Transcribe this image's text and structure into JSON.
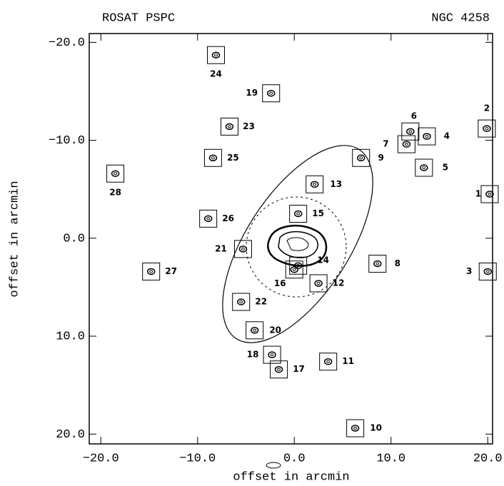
{
  "chart_data": {
    "type": "scatter",
    "title": "ROSAT PSPC",
    "subtitle": "NGC 4258",
    "x_label": "offset in arcmin",
    "y_label": "offset in arcmin",
    "labels": [
      "1",
      "2",
      "3",
      "4",
      "5",
      "6",
      "7",
      "8",
      "9",
      "10",
      "11",
      "12",
      "13",
      "14",
      "15",
      "16",
      "17",
      "18",
      "19",
      "20",
      "21",
      "22",
      "23",
      "24",
      "25",
      "26",
      "27",
      "28"
    ],
    "x": [
      20.2,
      19.9,
      20.0,
      13.7,
      13.4,
      12.0,
      11.6,
      8.6,
      6.9,
      6.3,
      3.5,
      2.5,
      2.1,
      0.4,
      0.4,
      0.0,
      -1.6,
      -2.3,
      -2.4,
      -4.1,
      -5.3,
      -5.5,
      -6.7,
      -8.1,
      -8.4,
      -8.9,
      -14.8,
      -18.5
    ],
    "values": [
      -4.5,
      -11.2,
      3.4,
      -10.4,
      -7.2,
      -10.9,
      -9.6,
      2.6,
      -8.2,
      19.4,
      12.6,
      4.6,
      -5.5,
      2.8,
      -2.5,
      3.2,
      13.4,
      11.9,
      -14.8,
      9.4,
      1.1,
      6.5,
      -11.4,
      -18.7,
      -8.2,
      -2.0,
      3.4,
      -6.6
    ],
    "color": "#000000",
    "xlim": [
      -21.2,
      20.5
    ],
    "ylim": [
      -20.9,
      21.0
    ],
    "y_axis_inverted": true,
    "xticks": [
      {
        "value": -20,
        "label": "−20.0"
      },
      {
        "value": -10,
        "label": "−10.0"
      },
      {
        "value": 0,
        "label": "0.0"
      },
      {
        "value": 10,
        "label": "10.0"
      },
      {
        "value": 20,
        "label": "20.0"
      }
    ],
    "yticks": [
      {
        "value": -20,
        "label": "−20.0"
      },
      {
        "value": -10,
        "label": "−10.0"
      },
      {
        "value": 0,
        "label": "0.0"
      },
      {
        "value": 10,
        "label": "10.0"
      },
      {
        "value": 20,
        "label": "20.0"
      }
    ],
    "grid": false
  }
}
